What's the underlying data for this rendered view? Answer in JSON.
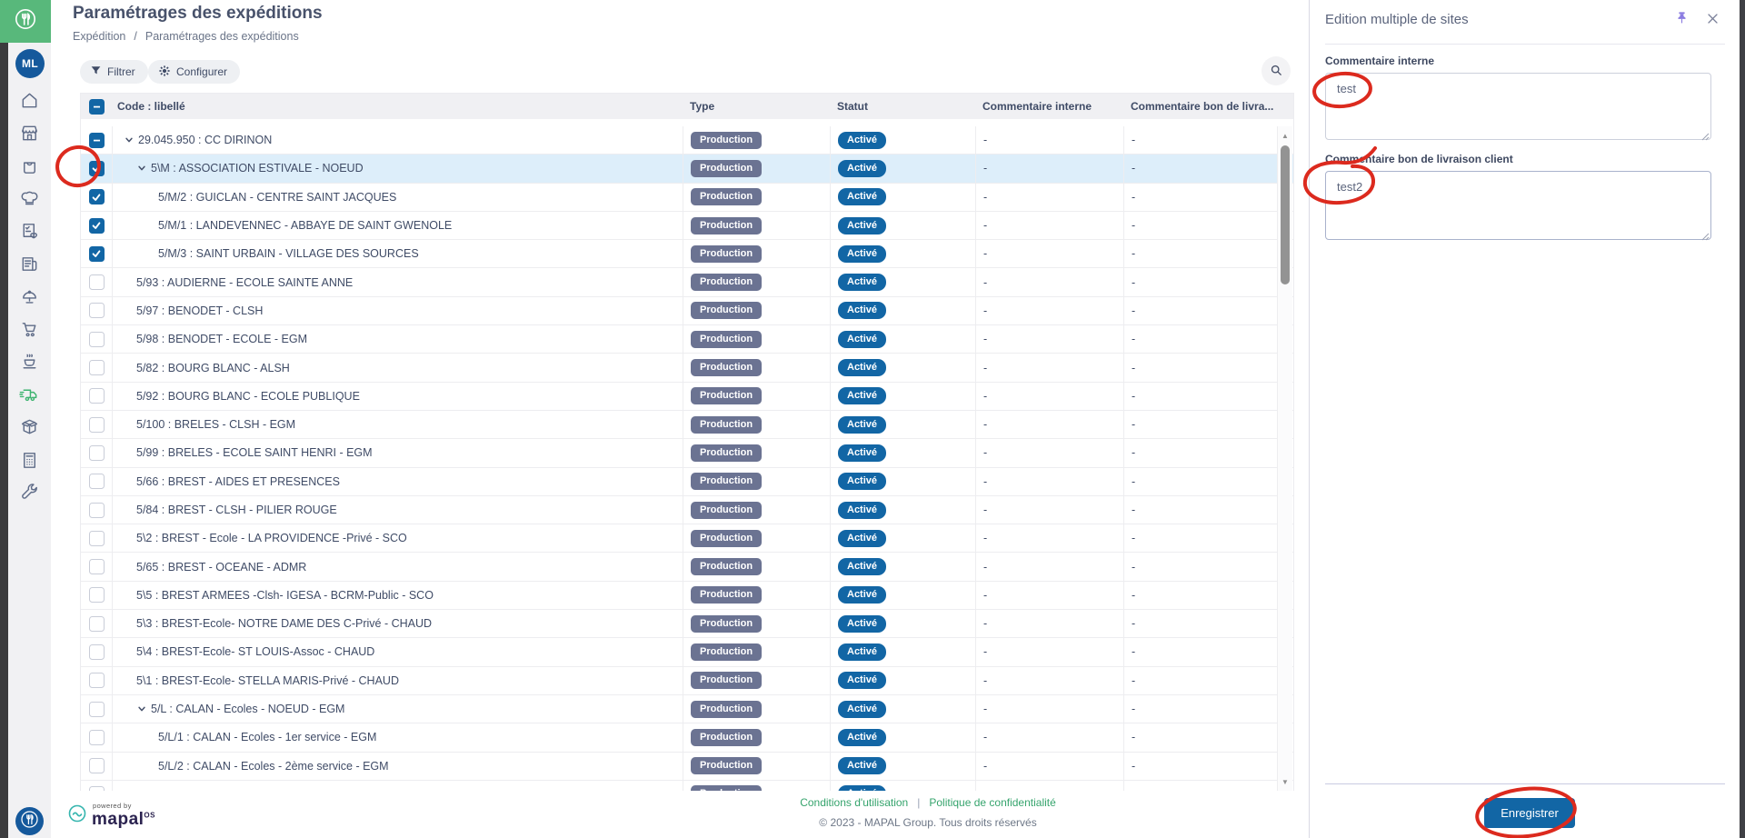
{
  "branding": {
    "avatar_initials": "ML",
    "powered_by": "powered by",
    "logo_text": "mapal",
    "logo_superscript": "OS"
  },
  "sidebar": {
    "items": [
      {
        "name": "home-icon"
      },
      {
        "name": "store-icon"
      },
      {
        "name": "shopping-bag-icon"
      },
      {
        "name": "chef-hat-icon"
      },
      {
        "name": "menu-checklist-icon"
      },
      {
        "name": "invoice-icon"
      },
      {
        "name": "cloche-icon"
      },
      {
        "name": "cart-icon"
      },
      {
        "name": "cooking-pot-icon"
      },
      {
        "name": "delivery-truck-icon",
        "active": true
      },
      {
        "name": "package-icon"
      },
      {
        "name": "calculator-icon"
      },
      {
        "name": "wrench-icon"
      }
    ]
  },
  "header": {
    "title": "Paramétrages des expéditions",
    "breadcrumb": [
      "Expédition",
      "Paramétrages des expéditions"
    ],
    "breadcrumb_separator": "/"
  },
  "toolbar": {
    "filter_label": "Filtrer",
    "configure_label": "Configurer"
  },
  "table": {
    "columns": [
      "Code : libellé",
      "Type",
      "Statut",
      "Commentaire interne",
      "Commentaire bon de livra..."
    ],
    "type_badge": "Production",
    "status_badge": "Activé",
    "empty_value": "-",
    "header_checkbox": "indeterminate",
    "scroll_up_glyph": "▲",
    "scroll_down_glyph": "▼",
    "rows": [
      {
        "label": "29.045.950 : CC DIRINON",
        "level": 0,
        "expanded": true,
        "checkbox": "indeterminate"
      },
      {
        "label": "5\\M : ASSOCIATION ESTIVALE - NOEUD",
        "level": 1,
        "expanded": true,
        "checkbox": "checked",
        "highlighted": true
      },
      {
        "label": "5/M/2 : GUICLAN - CENTRE SAINT JACQUES",
        "level": 2,
        "checkbox": "checked"
      },
      {
        "label": "5/M/1 : LANDEVENNEC - ABBAYE DE SAINT GWENOLE",
        "level": 2,
        "checkbox": "checked"
      },
      {
        "label": "5/M/3 : SAINT URBAIN - VILLAGE DES SOURCES",
        "level": 2,
        "checkbox": "checked"
      },
      {
        "label": "5/93 : AUDIERNE - ECOLE SAINTE ANNE",
        "level": 1,
        "checkbox": "unchecked"
      },
      {
        "label": "5/97 : BENODET - CLSH",
        "level": 1,
        "checkbox": "unchecked"
      },
      {
        "label": "5/98 : BENODET - ECOLE - EGM",
        "level": 1,
        "checkbox": "unchecked"
      },
      {
        "label": "5/82 : BOURG BLANC - ALSH",
        "level": 1,
        "checkbox": "unchecked"
      },
      {
        "label": "5/92 : BOURG BLANC - ECOLE PUBLIQUE",
        "level": 1,
        "checkbox": "unchecked"
      },
      {
        "label": "5/100 : BRELES - CLSH - EGM",
        "level": 1,
        "checkbox": "unchecked"
      },
      {
        "label": "5/99 : BRELES - ECOLE SAINT HENRI - EGM",
        "level": 1,
        "checkbox": "unchecked"
      },
      {
        "label": "5/66 : BREST - AIDES ET PRESENCES",
        "level": 1,
        "checkbox": "unchecked"
      },
      {
        "label": "5/84 : BREST - CLSH - PILIER ROUGE",
        "level": 1,
        "checkbox": "unchecked"
      },
      {
        "label": "5\\2 : BREST - Ecole - LA PROVIDENCE -Privé - SCO",
        "level": 1,
        "checkbox": "unchecked"
      },
      {
        "label": "5/65 : BREST - OCEANE - ADMR",
        "level": 1,
        "checkbox": "unchecked"
      },
      {
        "label": "5\\5 : BREST ARMEES -Clsh- IGESA - BCRM-Public - SCO",
        "level": 1,
        "checkbox": "unchecked"
      },
      {
        "label": "5\\3 : BREST-Ecole- NOTRE DAME DES C-Privé - CHAUD",
        "level": 1,
        "checkbox": "unchecked"
      },
      {
        "label": "5\\4 : BREST-Ecole- ST LOUIS-Assoc - CHAUD",
        "level": 1,
        "checkbox": "unchecked"
      },
      {
        "label": "5\\1 : BREST-Ecole- STELLA MARIS-Privé - CHAUD",
        "level": 1,
        "checkbox": "unchecked"
      },
      {
        "label": "5/L : CALAN - Ecoles - NOEUD - EGM",
        "level": 1,
        "expanded": true,
        "checkbox": "unchecked"
      },
      {
        "label": "5/L/1 : CALAN - Ecoles - 1er service - EGM",
        "level": 2,
        "checkbox": "unchecked"
      },
      {
        "label": "5/L/2 : CALAN - Ecoles - 2ème service - EGM",
        "level": 2,
        "checkbox": "unchecked"
      },
      {
        "label": "",
        "level": 1,
        "checkbox": "unchecked",
        "partial": true
      }
    ]
  },
  "panel": {
    "title": "Edition multiple de sites",
    "fields": [
      {
        "label": "Commentaire interne",
        "value": "test"
      },
      {
        "label": "Commentaire bon de livraison client",
        "value": "test2"
      }
    ],
    "save_label": "Enregistrer"
  },
  "footer": {
    "links": [
      "Conditions d'utilisation",
      "Politique de confidentialité"
    ],
    "separator": "|",
    "copyright": "© 2023 - MAPAL Group. Tous droits réservés"
  },
  "colors": {
    "accent_blue": "#1266a5",
    "badge_gray": "#6b7392",
    "active_green": "#3eb470",
    "annotation_red": "#dc2a1e",
    "row_highlight": "#ddeefa"
  }
}
